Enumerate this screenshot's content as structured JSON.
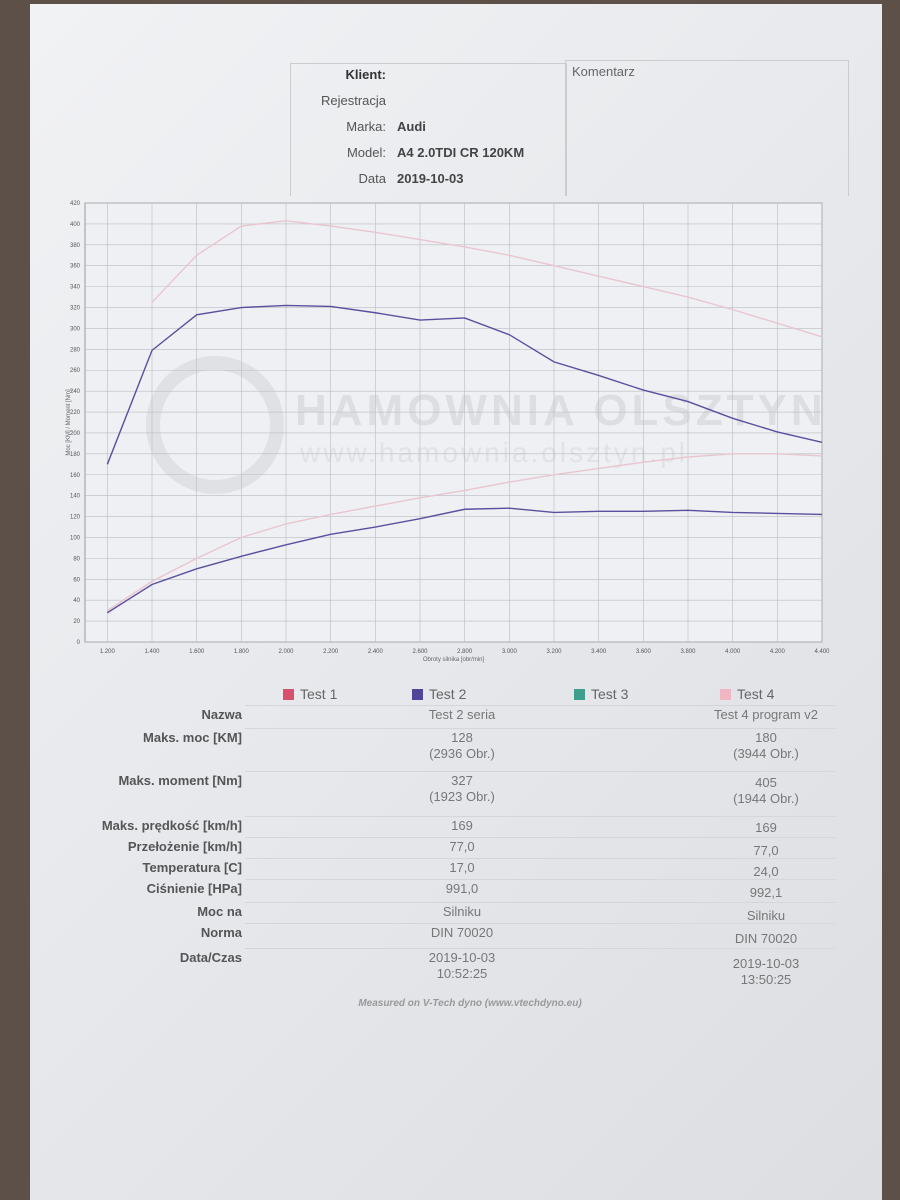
{
  "header": {
    "client_label": "Klient:",
    "registration_label": "Rejestracja",
    "make_label": "Marka:",
    "make": "Audi",
    "model_label": "Model:",
    "model": "A4 2.0TDI CR 120KM",
    "date_label": "Data",
    "date": "2019-10-03",
    "comment_label": "Komentarz"
  },
  "chart_data": {
    "type": "line",
    "watermark": "HAMOWNIA OLSZTYN",
    "watermark_url": "www.hamownia.olsztyn.pl",
    "x_label": "Obroty silnika [obr/min]",
    "y_label": "Moc [KM] / Moment [Nm]",
    "x": [
      1200,
      1400,
      1600,
      1800,
      2000,
      2200,
      2400,
      2600,
      2800,
      3000,
      3200,
      3400,
      3600,
      3800,
      4000,
      4200,
      4400
    ],
    "series": [
      {
        "color": "#5a4f9e",
        "values": [
          170,
          279,
          313,
          320,
          322,
          321,
          315,
          308,
          310,
          294,
          268,
          255,
          241,
          230,
          214,
          201,
          191
        ]
      },
      {
        "color": "#5a4f9e",
        "values": [
          28,
          55,
          70,
          82,
          93,
          103,
          110,
          118,
          127,
          128,
          124,
          125,
          125,
          126,
          124,
          123,
          122
        ]
      },
      {
        "color": "#e9c6cf",
        "values": [
          null,
          325,
          370,
          398,
          403,
          398,
          392,
          385,
          378,
          370,
          360,
          350,
          340,
          330,
          318,
          305,
          292
        ]
      },
      {
        "color": "#e9c6cf",
        "values": [
          30,
          58,
          80,
          100,
          113,
          122,
          130,
          138,
          145,
          153,
          160,
          166,
          172,
          177,
          180,
          180,
          178
        ]
      }
    ],
    "xlim": [
      1100,
      4400
    ],
    "xticks": [
      {
        "value": 1200,
        "label": "1.200"
      },
      {
        "value": 1400,
        "label": "1.400"
      },
      {
        "value": 1600,
        "label": "1.600"
      },
      {
        "value": 1800,
        "label": "1.800"
      },
      {
        "value": 2000,
        "label": "2.000"
      },
      {
        "value": 2200,
        "label": "2.200"
      },
      {
        "value": 2400,
        "label": "2.400"
      },
      {
        "value": 2600,
        "label": "2.600"
      },
      {
        "value": 2800,
        "label": "2.800"
      },
      {
        "value": 3000,
        "label": "3.000"
      },
      {
        "value": 3200,
        "label": "3.200"
      },
      {
        "value": 3400,
        "label": "3.400"
      },
      {
        "value": 3600,
        "label": "3.600"
      },
      {
        "value": 3800,
        "label": "3.800"
      },
      {
        "value": 4000,
        "label": "4.000"
      },
      {
        "value": 4200,
        "label": "4.200"
      },
      {
        "value": 4400,
        "label": "4.400"
      }
    ],
    "ylim": [
      0,
      420
    ],
    "yticks": [
      0,
      20,
      40,
      60,
      80,
      100,
      120,
      140,
      160,
      180,
      200,
      220,
      240,
      260,
      280,
      300,
      320,
      340,
      360,
      380,
      400,
      420
    ],
    "grid": true
  },
  "legend": [
    {
      "name": "Test 1",
      "color": "#d9506f"
    },
    {
      "name": "Test 2",
      "color": "#4f4699"
    },
    {
      "name": "Test 3",
      "color": "#3e9e8e"
    },
    {
      "name": "Test 4",
      "color": "#f0b6c3"
    }
  ],
  "table": {
    "rows": [
      [
        "Nazwa",
        [
          "Test 2 seria"
        ],
        [
          "Test 4 program v2"
        ]
      ],
      [
        "Maks. moc [KM]",
        [
          "128",
          "(2936 Obr.)"
        ],
        [
          "180",
          "(3944 Obr.)"
        ]
      ],
      [
        "Maks. moment [Nm]",
        [
          "327",
          "(1923 Obr.)"
        ],
        [
          "405",
          "(1944 Obr.)"
        ]
      ],
      [
        "Maks. prędkość [km/h]",
        [
          "169"
        ],
        [
          "169"
        ]
      ],
      [
        "Przełożenie [km/h]",
        [
          "77,0"
        ],
        [
          "77,0"
        ]
      ],
      [
        "Temperatura [C]",
        [
          "17,0"
        ],
        [
          "24,0"
        ]
      ],
      [
        "Ciśnienie [HPa]",
        [
          "991,0"
        ],
        [
          "992,1"
        ]
      ],
      [
        "Moc na",
        [
          "Silniku"
        ],
        [
          "Silniku"
        ]
      ],
      [
        "Norma",
        [
          "DIN 70020"
        ],
        [
          "DIN 70020"
        ]
      ],
      [
        "Data/Czas",
        [
          "2019-10-03",
          "10:52:25"
        ],
        [
          "2019-10-03",
          "13:50:25"
        ]
      ]
    ]
  },
  "footer": "Measured on V-Tech dyno (www.vtechdyno.eu)"
}
